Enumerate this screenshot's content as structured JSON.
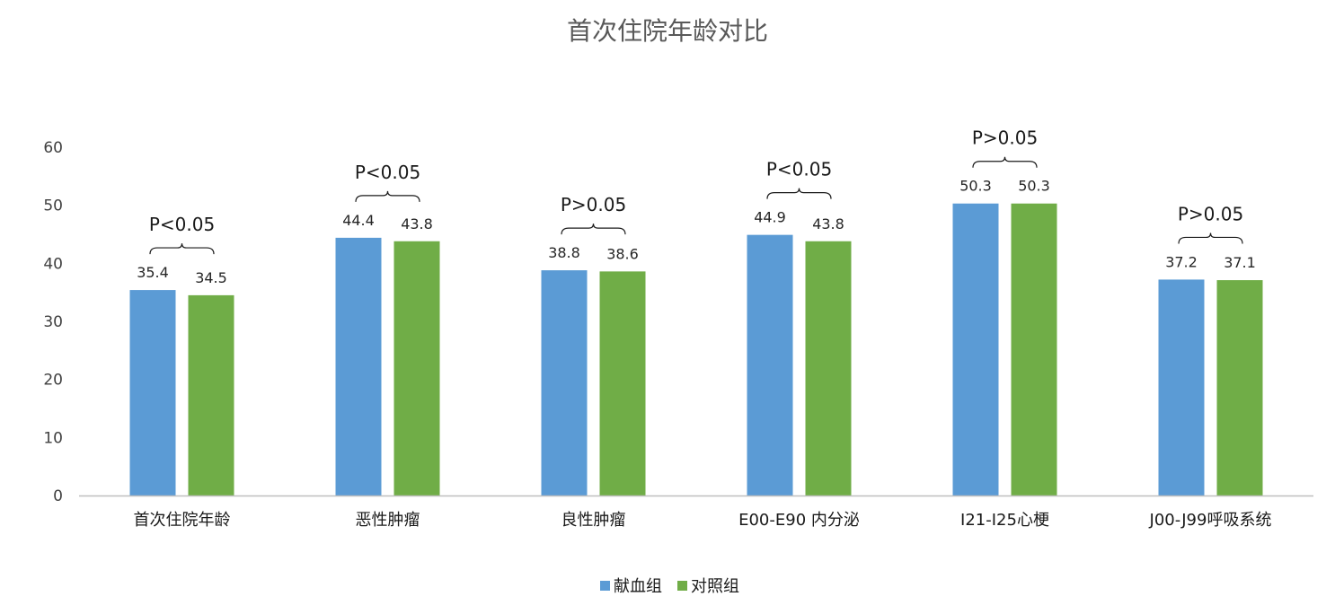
{
  "chart_data": {
    "type": "bar",
    "title": "首次住院年龄对比",
    "xlabel": "",
    "ylabel": "",
    "ylim": [
      0,
      60
    ],
    "yticks": [
      0,
      10,
      20,
      30,
      40,
      50,
      60
    ],
    "grid": false,
    "legend_position": "bottom-center",
    "categories": [
      "首次住院年龄",
      "恶性肿瘤",
      "良性肿瘤",
      "E00-E90 内分泌",
      "I21-I25心梗",
      "J00-J99呼吸系统"
    ],
    "series": [
      {
        "name": "献血组",
        "color": "#5B9BD5",
        "values": [
          35.4,
          44.4,
          38.8,
          44.9,
          50.3,
          37.2
        ]
      },
      {
        "name": "对照组",
        "color": "#70AD47",
        "values": [
          34.5,
          43.8,
          38.6,
          43.8,
          50.3,
          37.1
        ]
      }
    ],
    "value_labels": [
      [
        "35.4",
        "34.5"
      ],
      [
        "44.4",
        "43.8"
      ],
      [
        "38.8",
        "38.6"
      ],
      [
        "44.9",
        "43.8"
      ],
      [
        "50.3",
        "50.3"
      ],
      [
        "37.2",
        "37.1"
      ]
    ],
    "annotations": [
      "P<0.05",
      "P<0.05",
      "P>0.05",
      "P<0.05",
      "P>0.05",
      "P>0.05"
    ]
  }
}
